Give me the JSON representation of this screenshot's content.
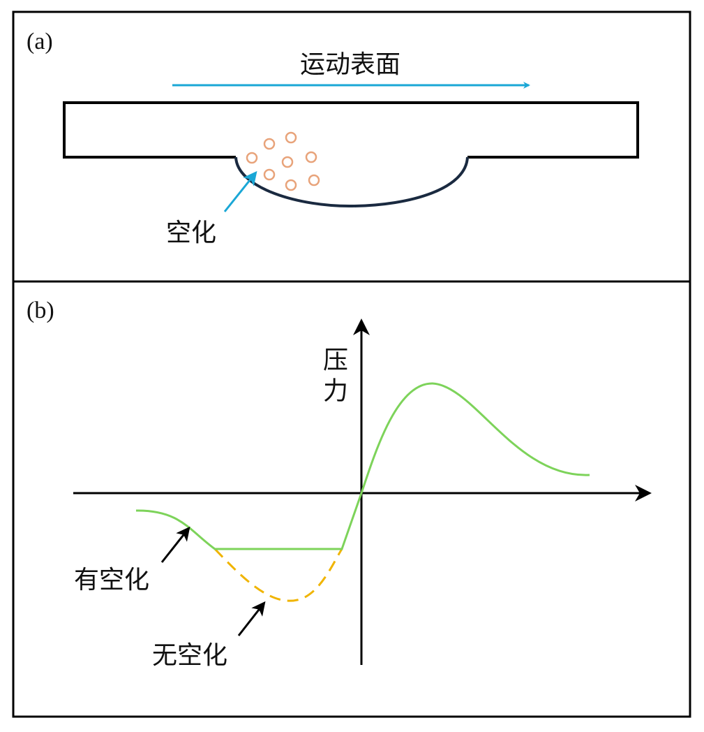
{
  "panel_a": {
    "label": "(a)",
    "surface_label": "运动表面",
    "cavitation_label": "空化"
  },
  "panel_b": {
    "label": "(b)",
    "y_axis_label": "压力",
    "curve_labels": [
      "有空化",
      "无空化"
    ]
  }
}
